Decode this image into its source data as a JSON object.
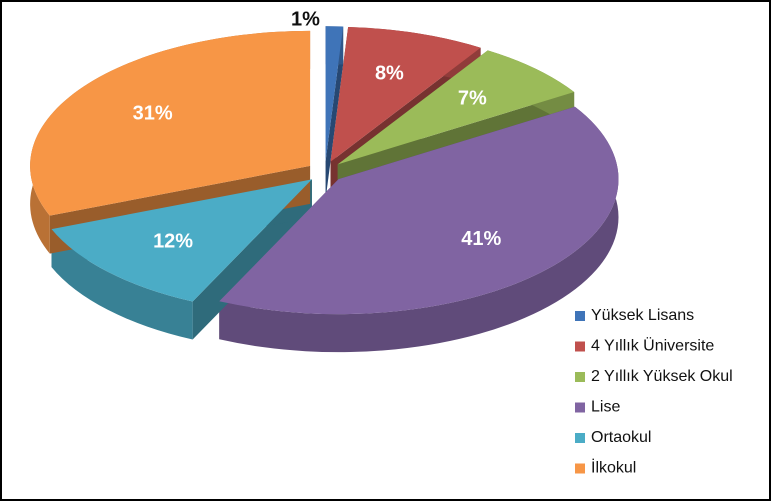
{
  "chart_data": {
    "type": "pie",
    "categories": [
      "Yüksek Lisans",
      "4 Yıllık Üniversite",
      "2 Yıllık Yüksek Okul",
      "Lise",
      "Ortaokul",
      "İlkokul"
    ],
    "values": [
      1,
      8,
      7,
      41,
      12,
      31
    ],
    "value_labels": [
      "1%",
      "8%",
      "7%",
      "41%",
      "12%",
      "31%"
    ],
    "colors": [
      "#3f74b8",
      "#c0504d",
      "#9bbb59",
      "#8064a2",
      "#4bacc6",
      "#f79646"
    ],
    "legend": "right"
  }
}
